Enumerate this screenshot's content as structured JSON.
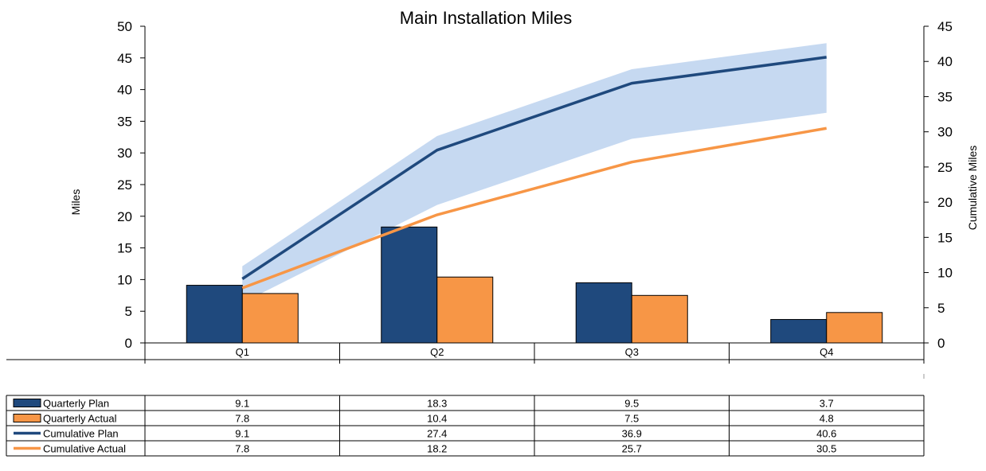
{
  "chart_data": {
    "type": "bar",
    "title": "Main Installation Miles",
    "ylabel": "Miles",
    "y2label": "Cumulative Miles",
    "categories": [
      "Q1",
      "Q2",
      "Q3",
      "Q4"
    ],
    "ylim": [
      0,
      50
    ],
    "y2lim": [
      0,
      45
    ],
    "yticks": [
      "0",
      "5",
      "10",
      "15",
      "20",
      "25",
      "30",
      "35",
      "40",
      "45",
      "50"
    ],
    "y2ticks": [
      "0",
      "5",
      "10",
      "15",
      "20",
      "25",
      "30",
      "35",
      "40",
      "45"
    ],
    "series": [
      {
        "name": "Quarterly Plan",
        "type": "bar",
        "axis": "left",
        "color": "#1f497d",
        "values": [
          9.1,
          18.3,
          9.5,
          3.7
        ],
        "labels": [
          "9.1",
          "18.3",
          "9.5",
          "3.7"
        ]
      },
      {
        "name": "Quarterly Actual",
        "type": "bar",
        "axis": "left",
        "color": "#f79646",
        "values": [
          7.8,
          10.4,
          7.5,
          4.8
        ],
        "labels": [
          "7.8",
          "10.4",
          "7.5",
          "4.8"
        ]
      },
      {
        "name": "Cumulative Plan",
        "type": "line",
        "axis": "right",
        "color": "#1f497d",
        "values": [
          9.1,
          27.4,
          36.9,
          40.6
        ],
        "labels": [
          "9.1",
          "27.4",
          "36.9",
          "40.6"
        ]
      },
      {
        "name": "Cumulative Actual",
        "type": "line",
        "axis": "right",
        "color": "#f79646",
        "values": [
          7.8,
          18.2,
          25.7,
          30.5
        ],
        "labels": [
          "7.8",
          "18.2",
          "25.7",
          "30.5"
        ]
      }
    ],
    "band": {
      "axis": "right",
      "color": "#c6d9f1",
      "upper": [
        10.9,
        29.4,
        38.9,
        42.6
      ],
      "lower": [
        5.7,
        19.6,
        29.0,
        32.7
      ]
    },
    "grid": false,
    "legend": "data-table"
  }
}
